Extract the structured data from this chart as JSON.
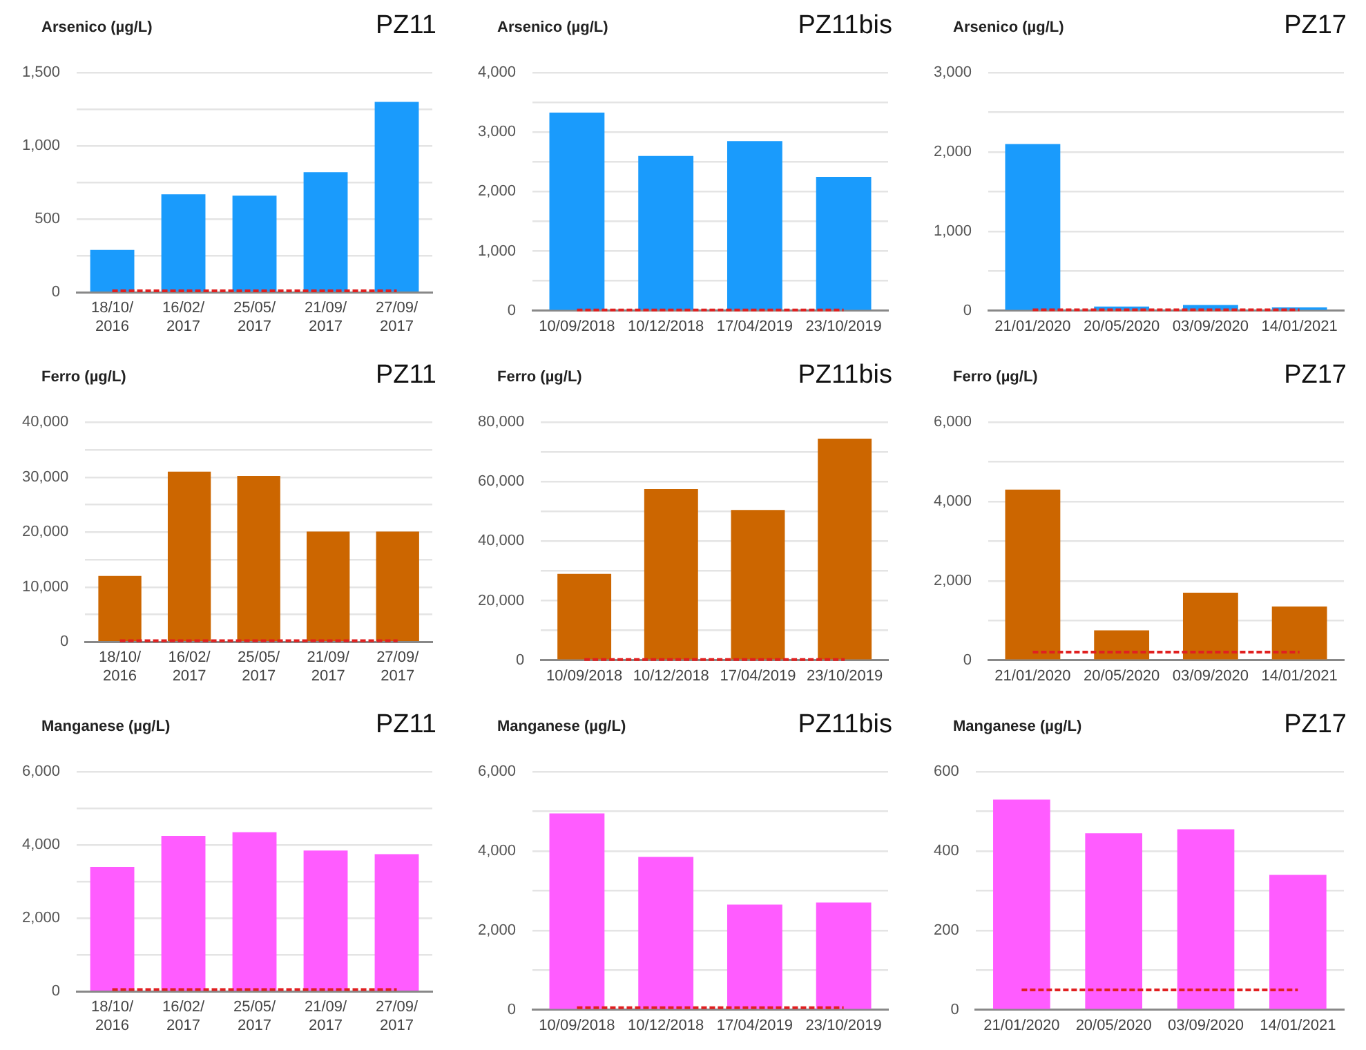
{
  "chart_data": [
    {
      "type": "bar",
      "title": "Arsenico (µg/L)",
      "subtitle": "PZ11",
      "categories": [
        "18/10/2016",
        "16/02/2017",
        "25/05/2017",
        "21/09/2017",
        "27/09/2017"
      ],
      "values": [
        290,
        670,
        660,
        820,
        1300
      ],
      "color": "#1a9bfc",
      "ylim": [
        0,
        1500
      ],
      "yticks": [
        0,
        {
          "value": 250,
          "label": null
        },
        500,
        {
          "value": 750,
          "label": null
        },
        {
          "value": 1000,
          "label": "1,000"
        },
        {
          "value": 1250,
          "label": null
        },
        {
          "value": 1500,
          "label": "1,500"
        }
      ],
      "grid": "y",
      "legend": false,
      "ref_lines": [
        {
          "axis": "y",
          "value": 10,
          "color": "#e02020",
          "line_style": "dashed"
        }
      ]
    },
    {
      "type": "bar",
      "title": "Arsenico (µg/L)",
      "subtitle": "PZ11bis",
      "categories": [
        "10/09/2018",
        "10/12/2018",
        "17/04/2019",
        "23/10/2019"
      ],
      "values": [
        3330,
        2600,
        2850,
        2250
      ],
      "color": "#1a9bfc",
      "ylim": [
        0,
        4000
      ],
      "yticks": [
        0,
        {
          "value": 500,
          "label": null
        },
        {
          "value": 1000,
          "label": "1,000"
        },
        {
          "value": 1500,
          "label": null
        },
        {
          "value": 2000,
          "label": "2,000"
        },
        {
          "value": 2500,
          "label": null
        },
        {
          "value": 3000,
          "label": "3,000"
        },
        {
          "value": 3500,
          "label": null
        },
        {
          "value": 4000,
          "label": "4,000"
        }
      ],
      "grid": "y",
      "legend": false,
      "ref_lines": [
        {
          "axis": "y",
          "value": 10,
          "color": "#e02020",
          "line_style": "dashed"
        }
      ]
    },
    {
      "type": "bar",
      "title": "Arsenico (µg/L)",
      "subtitle": "PZ17",
      "categories": [
        "21/01/2020",
        "20/05/2020",
        "03/09/2020",
        "14/01/2021"
      ],
      "values": [
        2100,
        50,
        70,
        40
      ],
      "color": "#1a9bfc",
      "ylim": [
        0,
        3000
      ],
      "yticks": [
        0,
        {
          "value": 500,
          "label": null
        },
        {
          "value": 1000,
          "label": "1,000"
        },
        {
          "value": 1500,
          "label": null
        },
        {
          "value": 2000,
          "label": "2,000"
        },
        {
          "value": 2500,
          "label": null
        },
        {
          "value": 3000,
          "label": "3,000"
        }
      ],
      "grid": "y",
      "legend": false,
      "ref_lines": [
        {
          "axis": "y",
          "value": 10,
          "color": "#e02020",
          "line_style": "dashed"
        }
      ]
    },
    {
      "type": "bar",
      "title": "Ferro (µg/L)",
      "subtitle": "PZ11",
      "categories": [
        "18/10/2016",
        "16/02/2017",
        "25/05/2017",
        "21/09/2017",
        "27/09/2017"
      ],
      "values": [
        12000,
        31000,
        30200,
        20100,
        20100
      ],
      "color": "#cc6600",
      "ylim": [
        0,
        40000
      ],
      "yticks": [
        0,
        {
          "value": 5000,
          "label": null
        },
        {
          "value": 10000,
          "label": "10,000"
        },
        {
          "value": 15000,
          "label": null
        },
        {
          "value": 20000,
          "label": "20,000"
        },
        {
          "value": 25000,
          "label": null
        },
        {
          "value": 30000,
          "label": "30,000"
        },
        {
          "value": 35000,
          "label": null
        },
        {
          "value": 40000,
          "label": "40,000"
        }
      ],
      "grid": "y",
      "legend": false,
      "ref_lines": [
        {
          "axis": "y",
          "value": 200,
          "color": "#e02020",
          "line_style": "dashed"
        }
      ]
    },
    {
      "type": "bar",
      "title": "Ferro (µg/L)",
      "subtitle": "PZ11bis",
      "categories": [
        "10/09/2018",
        "10/12/2018",
        "17/04/2019",
        "23/10/2019"
      ],
      "values": [
        29000,
        57500,
        50500,
        74500
      ],
      "color": "#cc6600",
      "ylim": [
        0,
        80000
      ],
      "yticks": [
        0,
        {
          "value": 10000,
          "label": null
        },
        {
          "value": 20000,
          "label": "20,000"
        },
        {
          "value": 30000,
          "label": null
        },
        {
          "value": 40000,
          "label": "40,000"
        },
        {
          "value": 50000,
          "label": null
        },
        {
          "value": 60000,
          "label": "60,000"
        },
        {
          "value": 70000,
          "label": null
        },
        {
          "value": 80000,
          "label": "80,000"
        }
      ],
      "grid": "y",
      "legend": false,
      "ref_lines": [
        {
          "axis": "y",
          "value": 200,
          "color": "#e02020",
          "line_style": "dashed"
        }
      ]
    },
    {
      "type": "bar",
      "title": "Ferro (µg/L)",
      "subtitle": "PZ17",
      "categories": [
        "21/01/2020",
        "20/05/2020",
        "03/09/2020",
        "14/01/2021"
      ],
      "values": [
        4300,
        750,
        1700,
        1350
      ],
      "color": "#cc6600",
      "ylim": [
        0,
        6000
      ],
      "yticks": [
        0,
        {
          "value": 1000,
          "label": null
        },
        {
          "value": 2000,
          "label": "2,000"
        },
        {
          "value": 3000,
          "label": null
        },
        {
          "value": 4000,
          "label": "4,000"
        },
        {
          "value": 5000,
          "label": null
        },
        {
          "value": 6000,
          "label": "6,000"
        }
      ],
      "grid": "y",
      "legend": false,
      "ref_lines": [
        {
          "axis": "y",
          "value": 200,
          "color": "#e02020",
          "line_style": "dashed"
        }
      ]
    },
    {
      "type": "bar",
      "title": "Manganese (µg/L)",
      "subtitle": "PZ11",
      "categories": [
        "18/10/2016",
        "16/02/2017",
        "25/05/2017",
        "21/09/2017",
        "27/09/2017"
      ],
      "values": [
        3400,
        4250,
        4350,
        3850,
        3750
      ],
      "color": "#ff5cff",
      "ylim": [
        0,
        6000
      ],
      "yticks": [
        0,
        {
          "value": 1000,
          "label": null
        },
        {
          "value": 2000,
          "label": "2,000"
        },
        {
          "value": 3000,
          "label": null
        },
        {
          "value": 4000,
          "label": "4,000"
        },
        {
          "value": 5000,
          "label": null
        },
        {
          "value": 6000,
          "label": "6,000"
        }
      ],
      "grid": "y",
      "legend": false,
      "ref_lines": [
        {
          "axis": "y",
          "value": 50,
          "color": "#e02020",
          "line_style": "dashed"
        }
      ]
    },
    {
      "type": "bar",
      "title": "Manganese (µg/L)",
      "subtitle": "PZ11bis",
      "categories": [
        "10/09/2018",
        "10/12/2018",
        "17/04/2019",
        "23/10/2019"
      ],
      "values": [
        4950,
        3850,
        2650,
        2700
      ],
      "color": "#ff5cff",
      "ylim": [
        0,
        6000
      ],
      "yticks": [
        0,
        {
          "value": 1000,
          "label": null
        },
        {
          "value": 2000,
          "label": "2,000"
        },
        {
          "value": 3000,
          "label": null
        },
        {
          "value": 4000,
          "label": "4,000"
        },
        {
          "value": 5000,
          "label": null
        },
        {
          "value": 6000,
          "label": "6,000"
        }
      ],
      "grid": "y",
      "legend": false,
      "ref_lines": [
        {
          "axis": "y",
          "value": 50,
          "color": "#e02020",
          "line_style": "dashed"
        }
      ]
    },
    {
      "type": "bar",
      "title": "Manganese (µg/L)",
      "subtitle": "PZ17",
      "categories": [
        "21/01/2020",
        "20/05/2020",
        "03/09/2020",
        "14/01/2021"
      ],
      "values": [
        530,
        445,
        455,
        340
      ],
      "color": "#ff5cff",
      "ylim": [
        0,
        600
      ],
      "yticks": [
        0,
        {
          "value": 100,
          "label": null
        },
        200,
        {
          "value": 300,
          "label": null
        },
        400,
        {
          "value": 500,
          "label": null
        },
        600
      ],
      "grid": "y",
      "legend": false,
      "ref_lines": [
        {
          "axis": "y",
          "value": 50,
          "color": "#e02020",
          "line_style": "dashed"
        }
      ]
    }
  ]
}
